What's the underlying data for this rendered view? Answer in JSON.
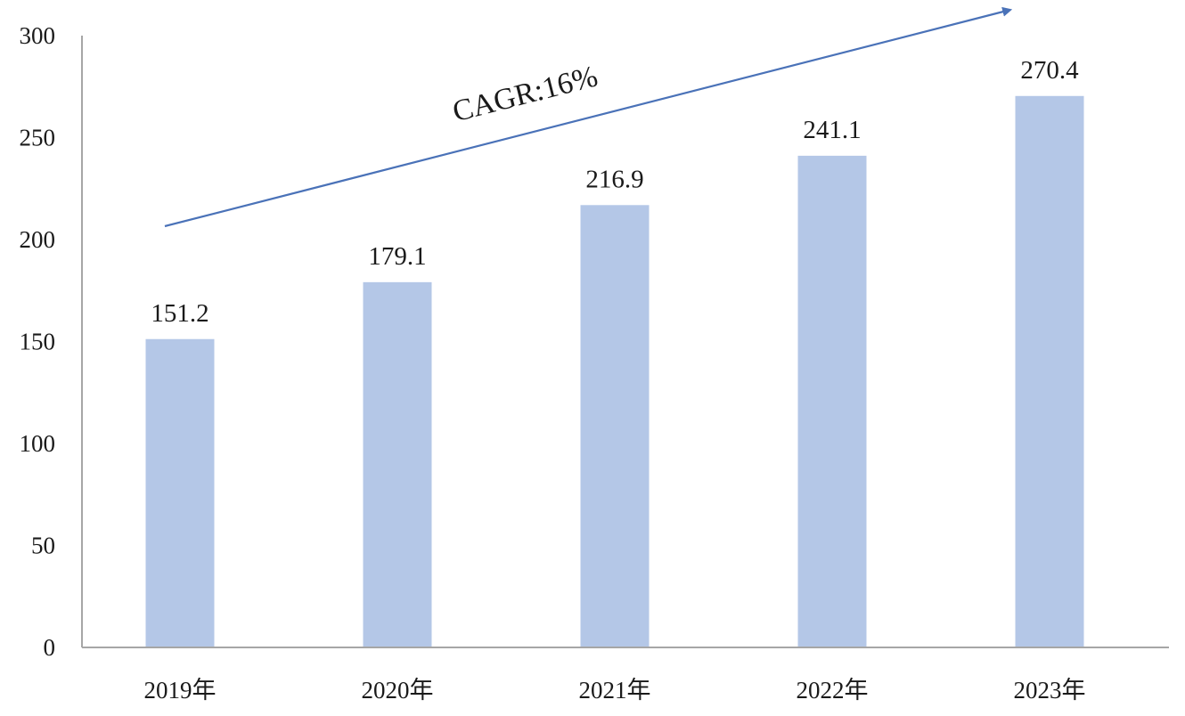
{
  "chart_data": {
    "type": "bar",
    "categories": [
      "2019年",
      "2020年",
      "2021年",
      "2022年",
      "2023年"
    ],
    "values": [
      151.2,
      179.1,
      216.9,
      241.1,
      270.4
    ],
    "data_labels": [
      "151.2",
      "179.1",
      "216.9",
      "241.1",
      "270.4"
    ],
    "title": "",
    "xlabel": "",
    "ylabel": "",
    "ylim": [
      0,
      300
    ],
    "yticks": [
      0,
      50,
      100,
      150,
      200,
      250,
      300
    ],
    "grid": false,
    "legend": "none",
    "annotation": {
      "text": "CAGR:16%",
      "arrow": "trend-arrow-up-right"
    },
    "colors": {
      "bar": "#b4c7e7",
      "arrow": "#4a72b8",
      "axis": "#a6a6a6",
      "text": "#1a1a1a"
    }
  }
}
